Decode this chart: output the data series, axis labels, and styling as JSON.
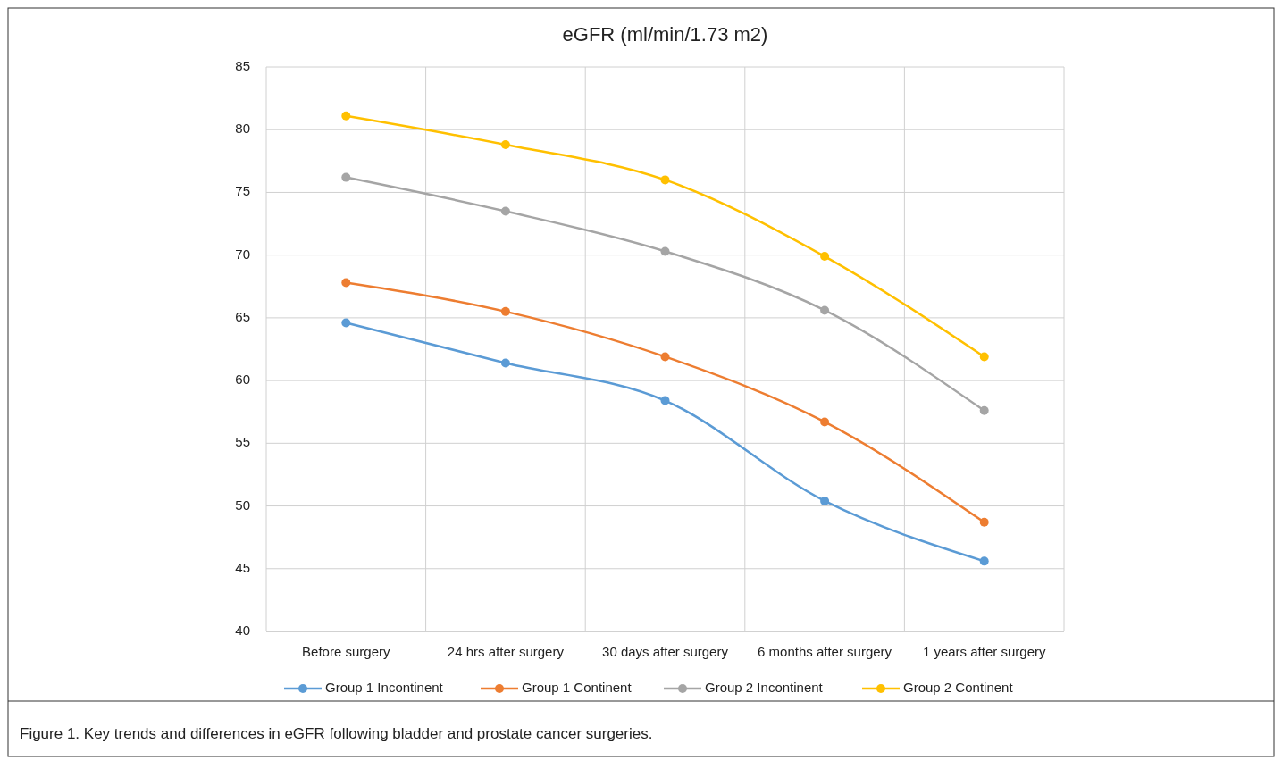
{
  "chart_data": {
    "type": "line",
    "title": "eGFR (ml/min/1.73 m2)",
    "categories": [
      "Before surgery",
      "24 hrs after surgery",
      "30 days after surgery",
      "6 months after surgery",
      "1 years after surgery"
    ],
    "series": [
      {
        "name": "Group 1 Incontinent",
        "color": "#5b9bd5",
        "values": [
          64.6,
          61.4,
          58.4,
          50.4,
          45.6
        ]
      },
      {
        "name": "Group 1 Continent",
        "color": "#ed7d31",
        "values": [
          67.8,
          65.5,
          61.9,
          56.7,
          48.7
        ]
      },
      {
        "name": "Group 2 Incontinent",
        "color": "#a5a5a5",
        "values": [
          76.2,
          73.5,
          70.3,
          65.6,
          57.6
        ]
      },
      {
        "name": "Group 2 Continent",
        "color": "#ffc000",
        "values": [
          81.1,
          78.8,
          76.0,
          69.9,
          61.9
        ]
      }
    ],
    "ylim": [
      40,
      85
    ],
    "yticks": [
      40,
      45,
      50,
      55,
      60,
      65,
      70,
      75,
      80,
      85
    ],
    "grid": true,
    "legend": "bottom",
    "marker": "circle",
    "line_style": "solid",
    "annotations": [
      "Figure 1.  Key trends and differences in eGFR following bladder and prostate cancer surgeries."
    ]
  }
}
